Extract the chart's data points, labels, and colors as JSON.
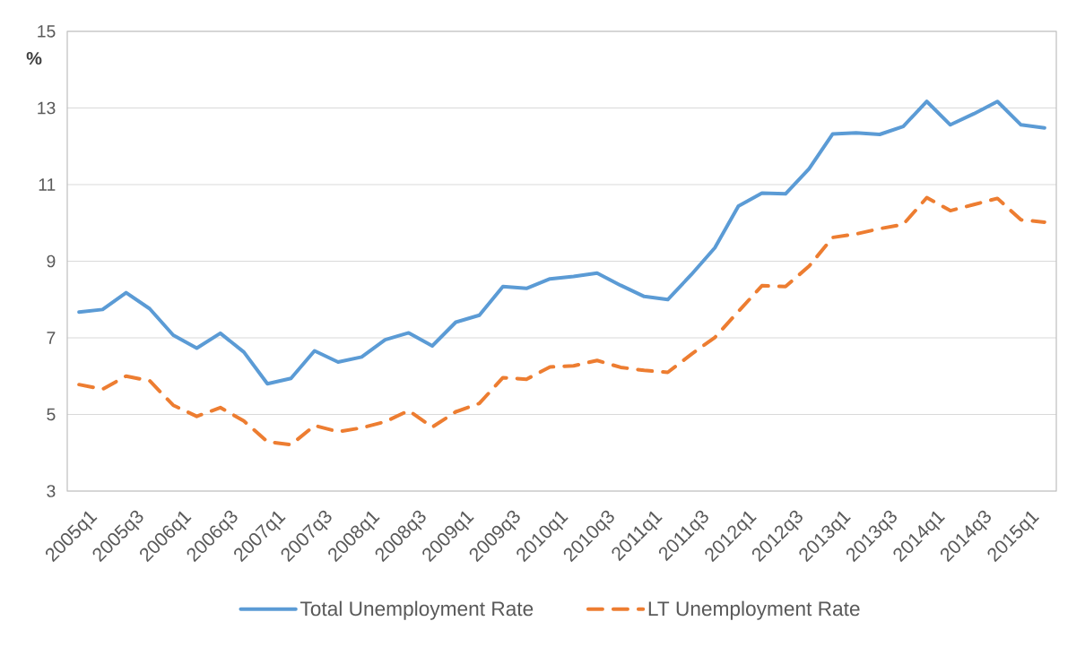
{
  "chart_data": {
    "type": "line",
    "ylabel": "%",
    "categories": [
      "2005q1",
      null,
      "2005q3",
      null,
      "2006q1",
      null,
      "2006q3",
      null,
      "2007q1",
      null,
      "2007q3",
      null,
      "2008q1",
      null,
      "2008q3",
      null,
      "2009q1",
      null,
      "2009q3",
      null,
      "2010q1",
      null,
      "2010q3",
      null,
      "2011q1",
      null,
      "2011q3",
      null,
      "2012q1",
      null,
      "2012q3",
      null,
      "2013q1",
      null,
      "2013q3",
      null,
      "2014q1",
      null,
      "2014q3",
      null,
      "2015q1",
      null
    ],
    "series": [
      {
        "name": "Total Unemployment Rate",
        "color": "#5b9bd5",
        "line_style": "solid",
        "values": [
          7.67,
          7.74,
          8.18,
          7.76,
          7.07,
          6.73,
          7.12,
          6.63,
          5.8,
          5.94,
          6.66,
          6.37,
          6.5,
          6.95,
          7.13,
          6.79,
          7.41,
          7.59,
          8.34,
          8.29,
          8.54,
          8.6,
          8.69,
          8.37,
          8.08,
          8.0,
          8.65,
          9.35,
          10.44,
          10.78,
          10.76,
          11.41,
          12.32,
          12.35,
          12.31,
          12.52,
          13.17,
          12.56,
          12.85,
          13.17,
          12.56,
          12.48
        ]
      },
      {
        "name": "LT Unemployment Rate",
        "color": "#ed7d31",
        "line_style": "dashed",
        "values": [
          5.78,
          5.66,
          6.0,
          5.88,
          5.24,
          4.95,
          5.18,
          4.83,
          4.29,
          4.21,
          4.71,
          4.55,
          4.65,
          4.81,
          5.1,
          4.67,
          5.07,
          5.29,
          5.96,
          5.92,
          6.24,
          6.27,
          6.41,
          6.23,
          6.15,
          6.1,
          6.57,
          7.01,
          7.69,
          8.36,
          8.34,
          8.87,
          9.62,
          9.71,
          9.85,
          9.96,
          10.66,
          10.32,
          10.48,
          10.64,
          10.08,
          10.02
        ]
      }
    ],
    "ylim": [
      3,
      15
    ],
    "yticks": [
      3,
      5,
      7,
      9,
      11,
      13,
      15
    ],
    "grid": "y",
    "legend": "bottom"
  }
}
